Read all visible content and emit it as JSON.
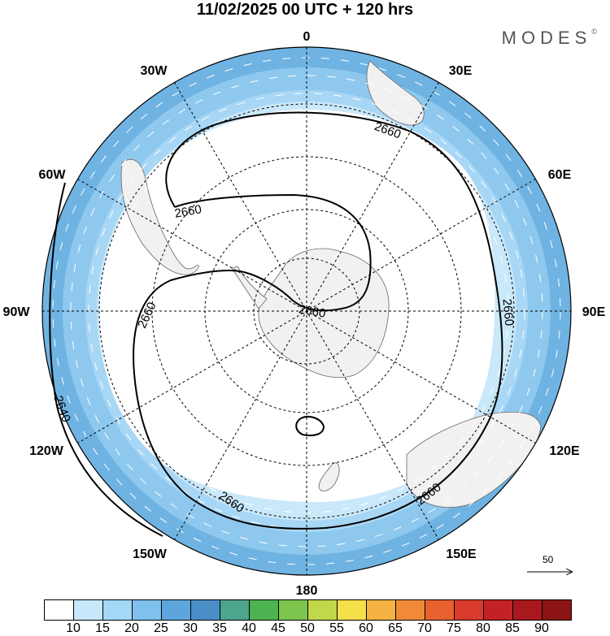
{
  "title": "11/02/2025  00 UTC  + 120 hrs",
  "brand": {
    "name": "MODES",
    "mark": "©"
  },
  "longitude_labels": {
    "n": "0",
    "nne": "30E",
    "ene": "60E",
    "e": "90E",
    "ese": "120E",
    "sse": "150E",
    "s": "180",
    "ssw": "150W",
    "wsw": "120W",
    "w": "90W",
    "wnw": "60W",
    "nnw": "30W"
  },
  "contours": [
    {
      "value": "2660",
      "label": "2660"
    },
    {
      "value": "2640",
      "label": "2640"
    }
  ],
  "contour_labels": [
    "2660",
    "2660",
    "2660",
    "2660",
    "2660",
    "2660",
    "2660",
    "2640"
  ],
  "vector_scale": {
    "value": "50"
  },
  "colorbar": {
    "colors": [
      "#ffffff",
      "#c6e8fa",
      "#a3d8f6",
      "#7fc0ec",
      "#5ca6dd",
      "#4a8ec8",
      "#4ca58c",
      "#4cb350",
      "#7dc44c",
      "#c1d84a",
      "#f5e04a",
      "#f5b343",
      "#f08a38",
      "#e8622f",
      "#d93a2b",
      "#c42127",
      "#a8191f",
      "#8c1414"
    ],
    "ticks": [
      "10",
      "15",
      "20",
      "25",
      "30",
      "35",
      "40",
      "45",
      "50",
      "55",
      "60",
      "65",
      "70",
      "75",
      "80",
      "85",
      "90"
    ]
  },
  "colors": {
    "ring_outer": "#6fb3e2",
    "ring_mid": "#8ec8ee",
    "ring_inner": "#bfe3f8",
    "land": "#f1f1f1"
  }
}
